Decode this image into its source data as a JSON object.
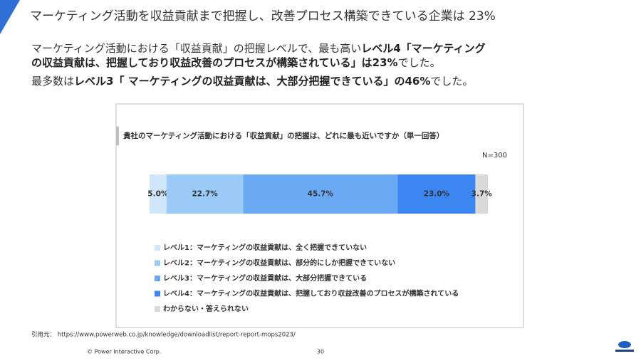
{
  "slide_title": "マーケティング活動を収益貢献まで把握し、改善プロセス構築できている企業は 23%",
  "body": [
    [
      {
        "text": "マーケティング活動における「収益貢献」の把握レベルで、最も高い",
        "bold": false
      },
      {
        "text": "レベル4「マーケティング",
        "bold": true
      }
    ],
    [
      {
        "text": "の収益貢献は、把握しており収益改善のプロセスが構築されている」は23%",
        "bold": true
      },
      {
        "text": "でした。",
        "bold": false
      }
    ],
    [
      {
        "text": "最多数は",
        "bold": false
      },
      {
        "text": "レベル3「 マーケティングの収益貢献は、大部分把握できている」の46%",
        "bold": true
      },
      {
        "text": "でした。",
        "bold": false
      }
    ]
  ],
  "chart_data": {
    "type": "stacked_bar",
    "title": "貴社のマーケティング活動における「収益貢献」の把握は、どれに最も近いですか（単一回答）",
    "note": "N=300",
    "xlim": [
      0,
      100.1
    ],
    "series": [
      {
        "name": "レベル1：マーケティングの収益貢献は、全く把握できていない",
        "color": "#cfe6fb",
        "values": [
          5.0
        ],
        "value_labels": [
          "5.0%"
        ]
      },
      {
        "name": "レベル2：マーケティングの収益貢献は、部分的にしか把握できていない",
        "color": "#9ccaf7",
        "values": [
          22.7
        ],
        "value_labels": [
          "22.7%"
        ]
      },
      {
        "name": "レベル3：マーケティングの収益貢献は、大部分把握できている",
        "color": "#6aaaf5",
        "values": [
          45.7
        ],
        "value_labels": [
          "45.7%"
        ]
      },
      {
        "name": "レベル4：マーケティングの収益貢献は、把握しており収益改善のプロセスが構築されている",
        "color": "#3b86f0",
        "values": [
          23.0
        ],
        "value_labels": [
          "23.0%"
        ]
      },
      {
        "name": "わからない・答えられない",
        "color": "#d9d9d9",
        "values": [
          3.7
        ],
        "value_labels": [
          "3.7%"
        ]
      }
    ]
  },
  "source": "引用元： https://www.powerweb.co.jp/knowledge/downloadlist/report-report-mops2023/",
  "copyright": "© Power Interactive Corp.",
  "page_number": "30"
}
